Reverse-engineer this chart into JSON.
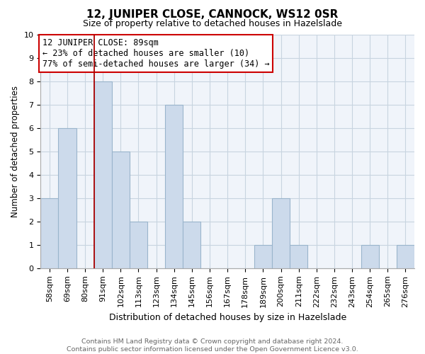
{
  "title": "12, JUNIPER CLOSE, CANNOCK, WS12 0SR",
  "subtitle": "Size of property relative to detached houses in Hazelslade",
  "xlabel": "Distribution of detached houses by size in Hazelslade",
  "ylabel": "Number of detached properties",
  "bins": [
    "58sqm",
    "69sqm",
    "80sqm",
    "91sqm",
    "102sqm",
    "113sqm",
    "123sqm",
    "134sqm",
    "145sqm",
    "156sqm",
    "167sqm",
    "178sqm",
    "189sqm",
    "200sqm",
    "211sqm",
    "222sqm",
    "232sqm",
    "243sqm",
    "254sqm",
    "265sqm",
    "276sqm"
  ],
  "values": [
    3,
    6,
    0,
    8,
    5,
    2,
    0,
    7,
    2,
    0,
    0,
    0,
    1,
    3,
    1,
    0,
    0,
    0,
    1,
    0,
    1
  ],
  "bar_color": "#ccdaeb",
  "bar_edge_color": "#9ab5cc",
  "highlight_color": "#aa0000",
  "ylim": [
    0,
    10
  ],
  "yticks": [
    0,
    1,
    2,
    3,
    4,
    5,
    6,
    7,
    8,
    9,
    10
  ],
  "annotation_line1": "12 JUNIPER CLOSE: 89sqm",
  "annotation_line2": "← 23% of detached houses are smaller (10)",
  "annotation_line3": "77% of semi-detached houses are larger (34) →",
  "footer_line1": "Contains HM Land Registry data © Crown copyright and database right 2024.",
  "footer_line2": "Contains public sector information licensed under the Open Government Licence v3.0.",
  "grid_color": "#c8d4e0",
  "background_color": "#f0f4fa",
  "property_bar_idx": 3,
  "title_fontsize": 11,
  "subtitle_fontsize": 9,
  "xlabel_fontsize": 9,
  "ylabel_fontsize": 8.5,
  "tick_fontsize": 8,
  "annotation_fontsize": 8.5,
  "footer_fontsize": 6.8
}
